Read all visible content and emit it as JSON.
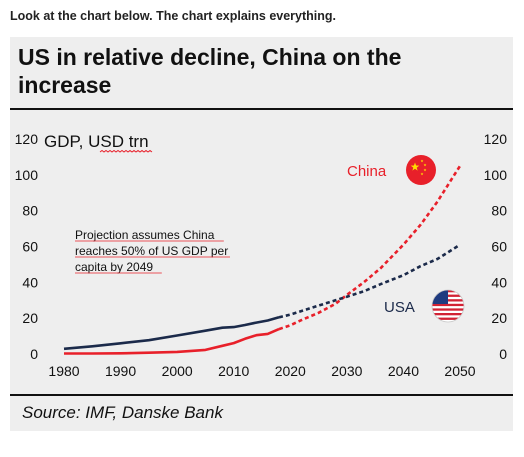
{
  "intro_text": "Look at the chart below. The chart explains everything.",
  "chart_data": {
    "type": "line",
    "title": "US in relative decline, China on the increase",
    "ylabel_left": "GDP, USD trn",
    "source": "Source: IMF, Danske Bank",
    "annotation": [
      "Projection assumes China",
      "reaches 50% of US GDP per",
      "capita by 2049"
    ],
    "xlim": [
      1980,
      2050
    ],
    "ylim": [
      0,
      120
    ],
    "x_ticks": [
      "1980",
      "1990",
      "2000",
      "2010",
      "2020",
      "2030",
      "2040",
      "2050"
    ],
    "y_ticks": [
      "0",
      "20",
      "40",
      "60",
      "80",
      "100",
      "120"
    ],
    "projection_start": 2018,
    "grid": false,
    "series": [
      {
        "name": "China",
        "color": "#e8202a",
        "icon": "china-flag-icon",
        "x": [
          1980,
          1985,
          1990,
          1995,
          2000,
          2005,
          2008,
          2010,
          2012,
          2014,
          2016,
          2018,
          2020,
          2022,
          2025,
          2028,
          2030,
          2033,
          2036,
          2040,
          2043,
          2046,
          2048,
          2050
        ],
        "y": [
          0.3,
          0.3,
          0.4,
          0.7,
          1.2,
          2.3,
          4.6,
          6.1,
          8.5,
          10.5,
          11.2,
          13.9,
          16,
          19,
          23,
          28,
          33,
          40,
          48,
          61,
          72,
          85,
          95,
          105
        ]
      },
      {
        "name": "USA",
        "color": "#1b2a4a",
        "icon": "usa-flag-icon",
        "x": [
          1980,
          1985,
          1990,
          1995,
          2000,
          2005,
          2008,
          2010,
          2012,
          2014,
          2016,
          2018,
          2020,
          2022,
          2025,
          2028,
          2030,
          2033,
          2036,
          2040,
          2043,
          2046,
          2048,
          2050
        ],
        "y": [
          2.9,
          4.3,
          6,
          7.7,
          10.3,
          13,
          14.7,
          15,
          16.2,
          17.5,
          18.7,
          20.5,
          22,
          24,
          27,
          30,
          32,
          35,
          39,
          44,
          49,
          53,
          57,
          61
        ]
      }
    ]
  }
}
